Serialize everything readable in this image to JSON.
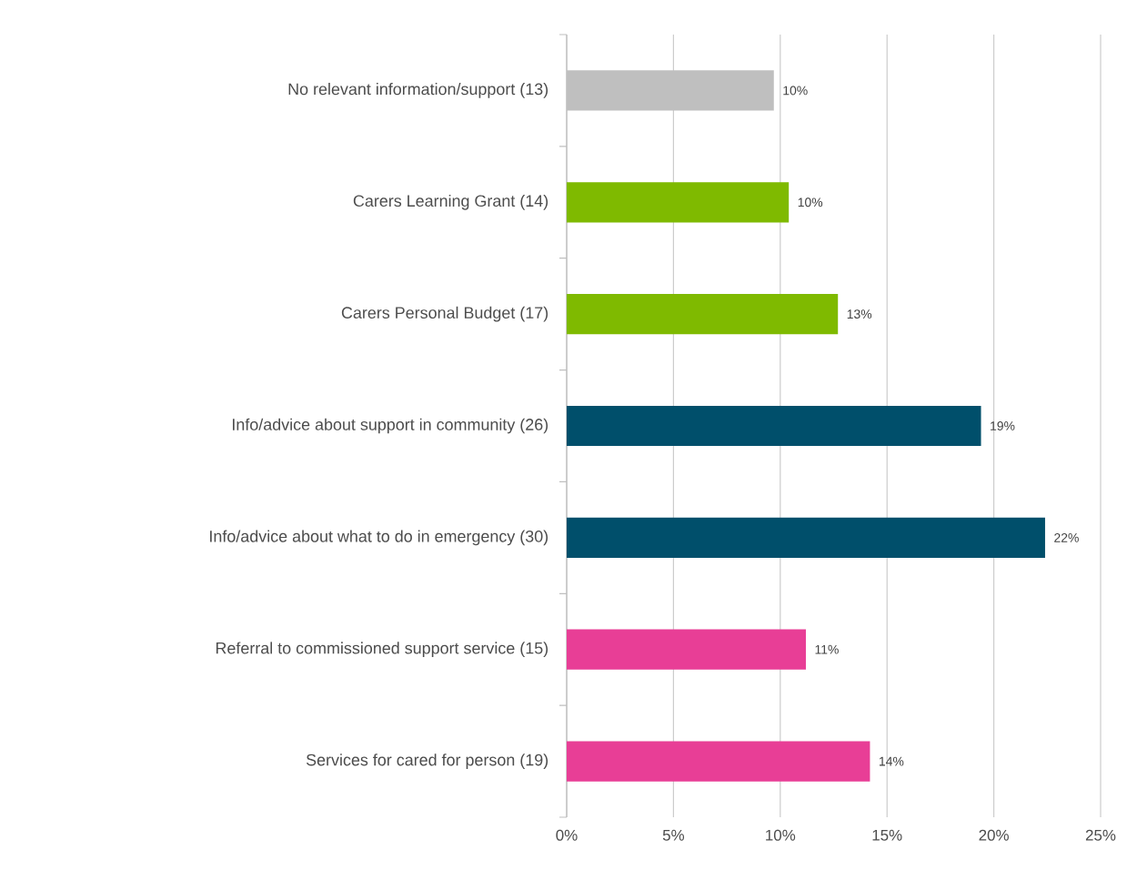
{
  "chart_data": {
    "type": "bar",
    "orientation": "horizontal",
    "categories": [
      "No relevant information/support (13)",
      "Carers Learning Grant (14)",
      "Carers Personal Budget (17)",
      "Info/advice about support in community (26)",
      "Info/advice about what to do in emergency (30)",
      "Referral to commissioned support service (15)",
      "Services for cared for person (19)"
    ],
    "values": [
      9.7,
      10.4,
      12.7,
      19.4,
      22.4,
      11.2,
      14.2
    ],
    "colors": [
      "#bfbfbf",
      "#7fba00",
      "#7fba00",
      "#004f6b",
      "#004f6b",
      "#e83e96",
      "#e83e96"
    ],
    "value_labels": [
      "10%",
      "10%",
      "13%",
      "19%",
      "22%",
      "11%",
      "14%"
    ],
    "xlim": [
      0,
      25
    ],
    "xticks": [
      {
        "value": 0,
        "label": "0%"
      },
      {
        "value": 5,
        "label": "5%"
      },
      {
        "value": 10,
        "label": "10%"
      },
      {
        "value": 15,
        "label": "15%"
      },
      {
        "value": 20,
        "label": "20%"
      },
      {
        "value": 25,
        "label": "25%"
      }
    ],
    "grid": "x"
  }
}
